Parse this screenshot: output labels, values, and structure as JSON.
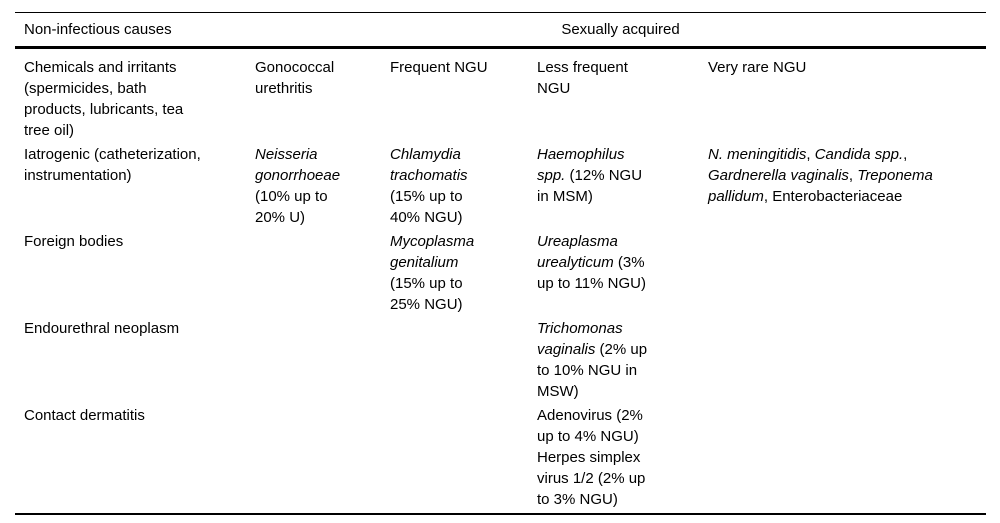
{
  "colors": {
    "background": "#ffffff",
    "text": "#000000",
    "rule": "#000000"
  },
  "table": {
    "header": {
      "non_infectious_label": "Non-infectious causes",
      "sexually_acquired_label": "Sexually acquired"
    },
    "rows": [
      {
        "cells": [
          [
            [
              {
                "t": "Chemicals and irritants (spermicides, bath products, lubricants, tea tree oil)",
                "i": false
              }
            ]
          ],
          [
            [
              {
                "t": "Gonococcal urethritis",
                "i": false
              }
            ]
          ],
          [
            [
              {
                "t": "Frequent NGU",
                "i": false
              }
            ]
          ],
          [
            [
              {
                "t": "Less frequent NGU",
                "i": false
              }
            ]
          ],
          [
            [
              {
                "t": "Very rare NGU",
                "i": false
              }
            ]
          ]
        ]
      },
      {
        "cells": [
          [
            [
              {
                "t": "Iatrogenic (catheterization, instrumentation)",
                "i": false
              }
            ]
          ],
          [
            [
              {
                "t": "Neisseria gonorrhoeae",
                "i": true
              },
              {
                "t": " (10% up to 20% U)",
                "i": false
              }
            ]
          ],
          [
            [
              {
                "t": "Chlamydia trachomatis",
                "i": true
              },
              {
                "t": " (15% up to 40% NGU)",
                "i": false
              }
            ]
          ],
          [
            [
              {
                "t": "Haemophilus spp.",
                "i": true
              },
              {
                "t": " (12% NGU in MSM)",
                "i": false
              }
            ]
          ],
          [
            [
              {
                "t": "N. meningitidis",
                "i": true
              },
              {
                "t": ", ",
                "i": false
              },
              {
                "t": "Candida spp.",
                "i": true
              },
              {
                "t": ", ",
                "i": false
              },
              {
                "t": "Gardnerella vaginalis",
                "i": true
              },
              {
                "t": ", ",
                "i": false
              },
              {
                "t": "Treponema pallidum",
                "i": true
              },
              {
                "t": ", Enterobacteriaceae",
                "i": false
              }
            ]
          ]
        ]
      },
      {
        "cells": [
          [
            [
              {
                "t": "Foreign bodies",
                "i": false
              }
            ]
          ],
          [],
          [
            [
              {
                "t": "Mycoplasma genitalium",
                "i": true
              },
              {
                "t": " (15% up to 25% NGU)",
                "i": false
              }
            ]
          ],
          [
            [
              {
                "t": "Ureaplasma urealyticum",
                "i": true
              },
              {
                "t": " (3% up to 11% NGU)",
                "i": false
              }
            ]
          ],
          []
        ]
      },
      {
        "cells": [
          [
            [
              {
                "t": "Endourethral neoplasm",
                "i": false
              }
            ]
          ],
          [],
          [],
          [
            [
              {
                "t": "Trichomonas vaginalis",
                "i": true
              },
              {
                "t": " (2% up to 10% NGU in MSW)",
                "i": false
              }
            ]
          ],
          []
        ]
      },
      {
        "cells": [
          [
            [
              {
                "t": "Contact dermatitis",
                "i": false
              }
            ]
          ],
          [],
          [],
          [
            [
              {
                "t": "Adenovirus (2% up to 4% NGU)",
                "i": false
              }
            ],
            [
              {
                "t": "Herpes simplex virus 1/2 (2% up to 3% NGU)",
                "i": false
              }
            ]
          ],
          []
        ]
      }
    ]
  }
}
